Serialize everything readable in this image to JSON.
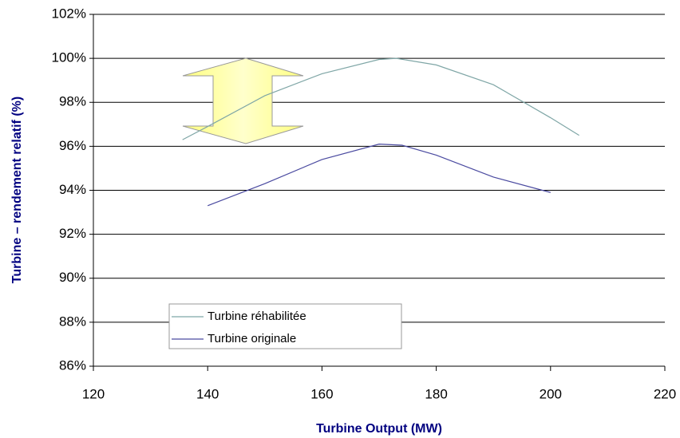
{
  "chart_data": {
    "type": "line",
    "xlabel": "Turbine Output (MW)",
    "ylabel": "Turbine – rendement relatif (%)",
    "xlim": [
      120,
      220
    ],
    "xticks": [
      120,
      140,
      160,
      180,
      200,
      220
    ],
    "ylim": [
      86,
      102
    ],
    "yticks": [
      {
        "value": 86,
        "label": "86%"
      },
      {
        "value": 88,
        "label": "88%"
      },
      {
        "value": 90,
        "label": "90%"
      },
      {
        "value": 92,
        "label": "92%"
      },
      {
        "value": 94,
        "label": "94%"
      },
      {
        "value": 96,
        "label": "96%"
      },
      {
        "value": 98,
        "label": "98%"
      },
      {
        "value": 100,
        "label": "100%"
      },
      {
        "value": 102,
        "label": "102%"
      }
    ],
    "grid": true,
    "series": [
      {
        "name": "Turbine réhabilitée",
        "color": "#7fa6a6",
        "x": [
          135.6,
          140,
          150,
          160,
          170,
          173,
          180,
          190,
          200,
          205
        ],
        "values": [
          96.3,
          96.9,
          98.3,
          99.3,
          99.95,
          100,
          99.7,
          98.8,
          97.3,
          96.5
        ]
      },
      {
        "name": "Turbine originale",
        "color": "#4a4aa0",
        "x": [
          140,
          150,
          160,
          170,
          174,
          180,
          190,
          200
        ],
        "values": [
          93.3,
          94.3,
          95.4,
          96.1,
          96.05,
          95.6,
          94.6,
          93.9
        ]
      }
    ]
  }
}
